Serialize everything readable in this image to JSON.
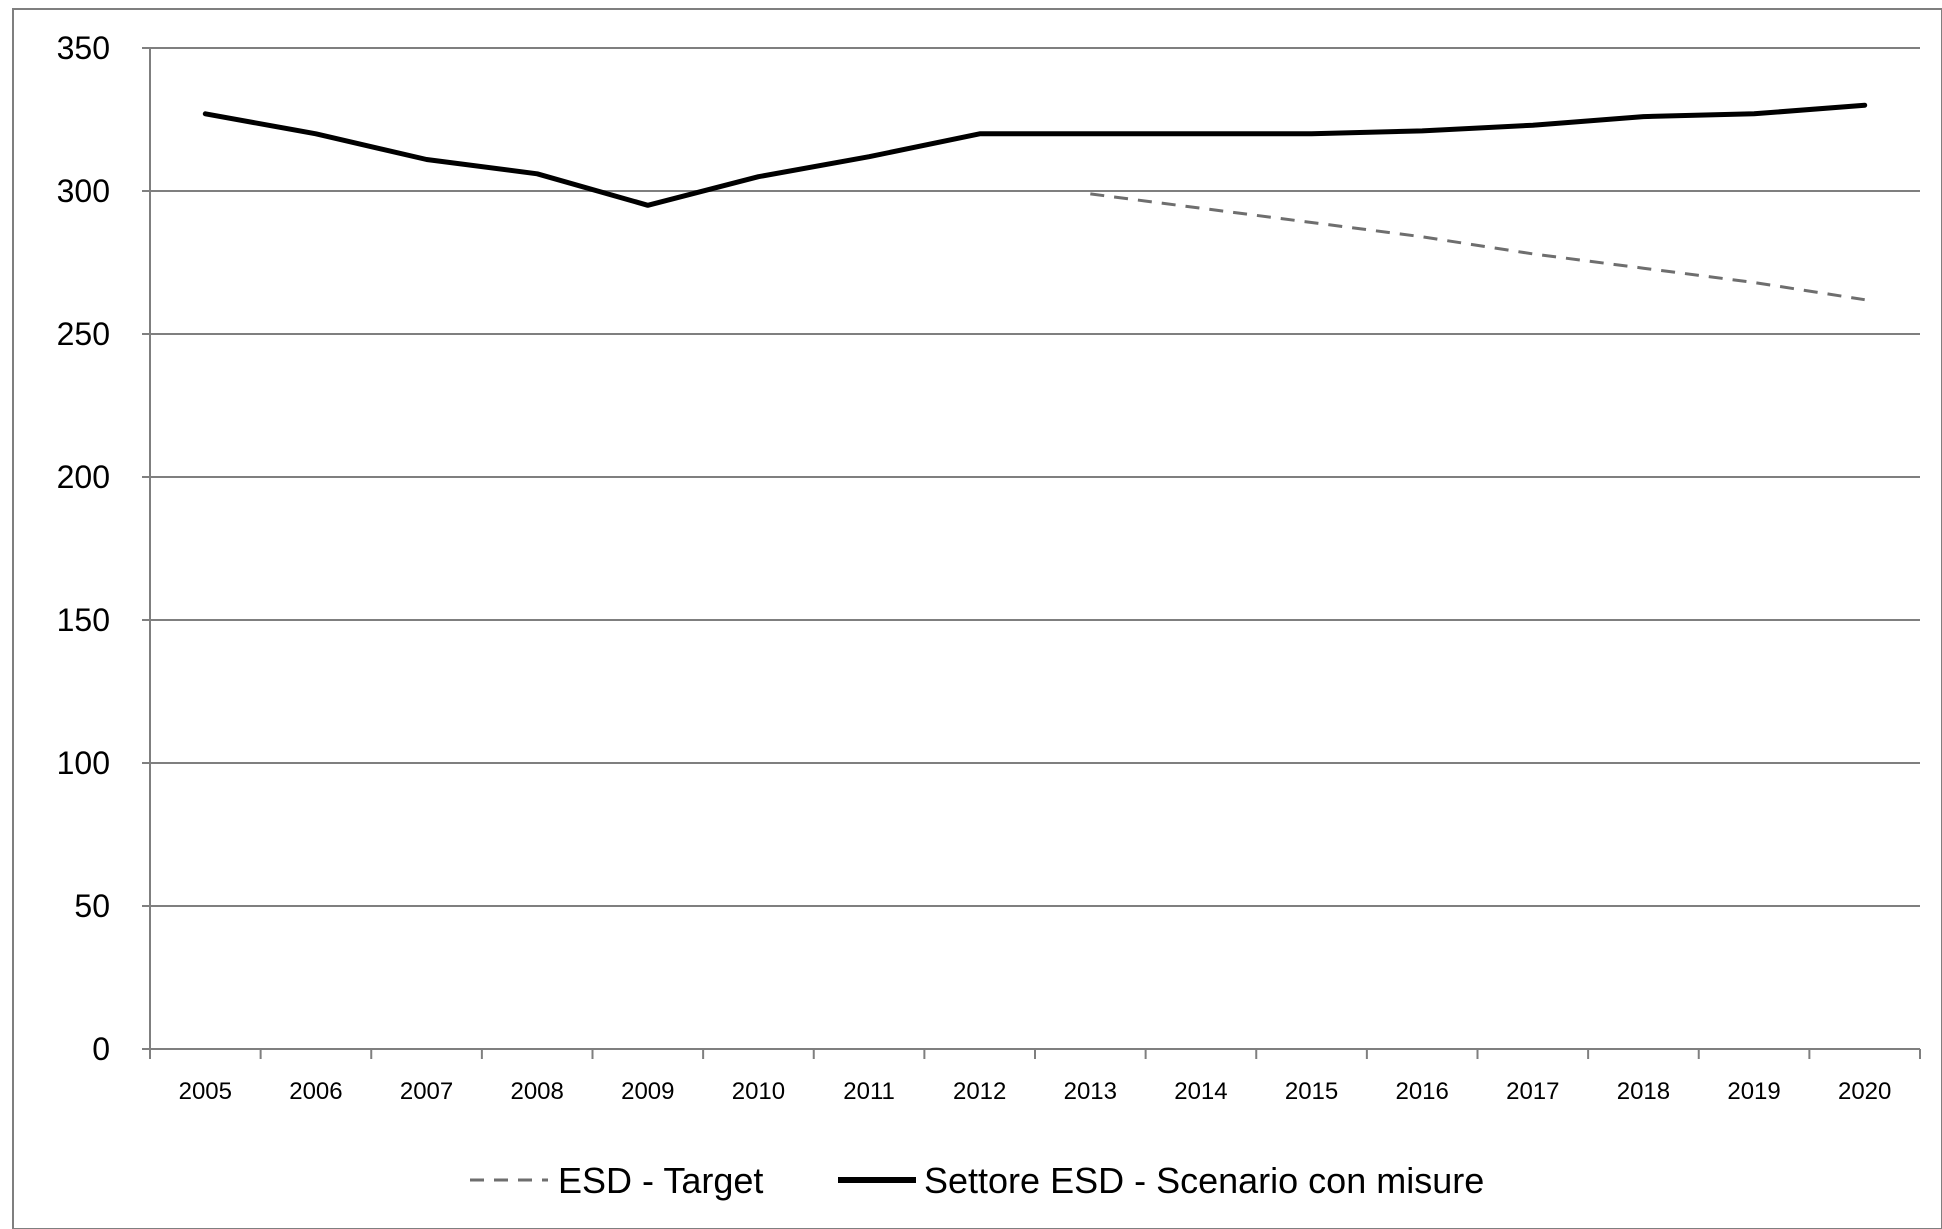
{
  "chart_data": {
    "type": "line",
    "title": "",
    "xlabel": "",
    "ylabel": "",
    "categories": [
      "2005",
      "2006",
      "2007",
      "2008",
      "2009",
      "2010",
      "2011",
      "2012",
      "2013",
      "2014",
      "2015",
      "2016",
      "2017",
      "2018",
      "2019",
      "2020"
    ],
    "ylim": [
      0,
      350
    ],
    "yticks": [
      0,
      50,
      100,
      150,
      200,
      250,
      300,
      350
    ],
    "grid": true,
    "legend_position": "bottom",
    "series": [
      {
        "name": "ESD - Target",
        "style": "dashed",
        "color": "#6e6e6e",
        "values": [
          null,
          null,
          null,
          null,
          null,
          null,
          null,
          null,
          299,
          294,
          289,
          284,
          278,
          273,
          268,
          262
        ]
      },
      {
        "name": "Settore ESD - Scenario con misure",
        "style": "solid",
        "color": "#000000",
        "values": [
          327,
          320,
          311,
          306,
          295,
          305,
          312,
          320,
          320,
          320,
          320,
          321,
          323,
          326,
          327,
          330
        ]
      }
    ]
  },
  "colors": {
    "axis": "#7f7f7f",
    "grid": "#7f7f7f",
    "frame": "#7f7f7f"
  }
}
